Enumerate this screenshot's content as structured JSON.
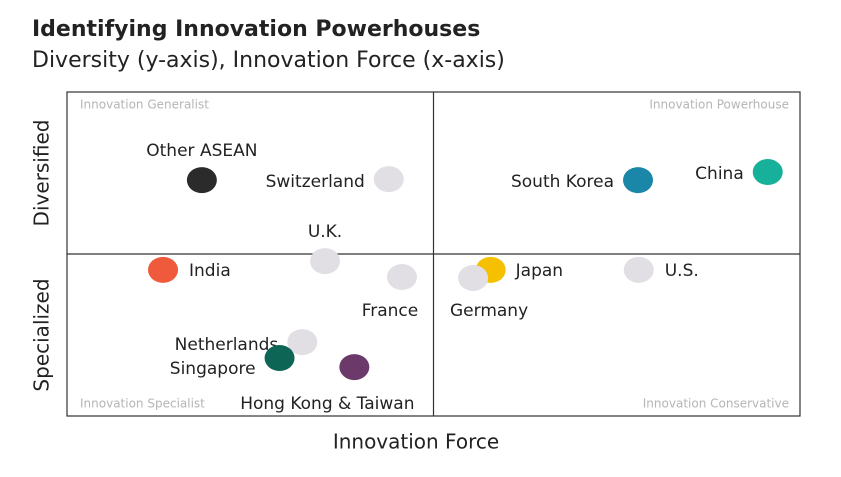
{
  "chart_data": {
    "type": "scatter",
    "title": "Identifying Innovation Powerhouses",
    "subtitle": "Diversity (y-axis), Innovation Force (x-axis)",
    "x_label": "Innovation Force",
    "y_labels": [
      "Specialized",
      "Diversified"
    ],
    "quadrants": [
      "Innovation Generalist",
      "Innovation Powerhouse",
      "Innovation Specialist",
      "Innovation Conservative"
    ],
    "xlim": [
      0,
      100
    ],
    "ylim": [
      0,
      100
    ],
    "points": [
      {
        "name": "Other ASEAN",
        "x": 18.4,
        "y": 72.8,
        "color": "#2b2b2b"
      },
      {
        "name": "Switzerland",
        "x": 43.9,
        "y": 73.1,
        "color": "#e2dfe4"
      },
      {
        "name": "South Korea",
        "x": 77.9,
        "y": 72.8,
        "color": "#1a87a8"
      },
      {
        "name": "China",
        "x": 95.6,
        "y": 75.3,
        "color": "#17b09a"
      },
      {
        "name": "U.K.",
        "x": 35.2,
        "y": 47.8,
        "color": "#e2dfe4"
      },
      {
        "name": "India",
        "x": 13.1,
        "y": 45.1,
        "color": "#ef5a3c"
      },
      {
        "name": "France",
        "x": 45.7,
        "y": 42.9,
        "color": "#e2dfe4"
      },
      {
        "name": "Japan",
        "x": 57.8,
        "y": 45.1,
        "color": "#f5c000"
      },
      {
        "name": "Germany",
        "x": 55.4,
        "y": 42.6,
        "color": "#e2dfe4"
      },
      {
        "name": "U.S.",
        "x": 78.0,
        "y": 45.1,
        "color": "#e2dfe4"
      },
      {
        "name": "Netherlands",
        "x": 32.1,
        "y": 22.8,
        "color": "#e2dfe4"
      },
      {
        "name": "Singapore",
        "x": 29.0,
        "y": 17.9,
        "color": "#0d6655"
      },
      {
        "name": "Hong Kong & Taiwan",
        "x": 39.2,
        "y": 15.1,
        "color": "#6b3a6b"
      }
    ]
  }
}
